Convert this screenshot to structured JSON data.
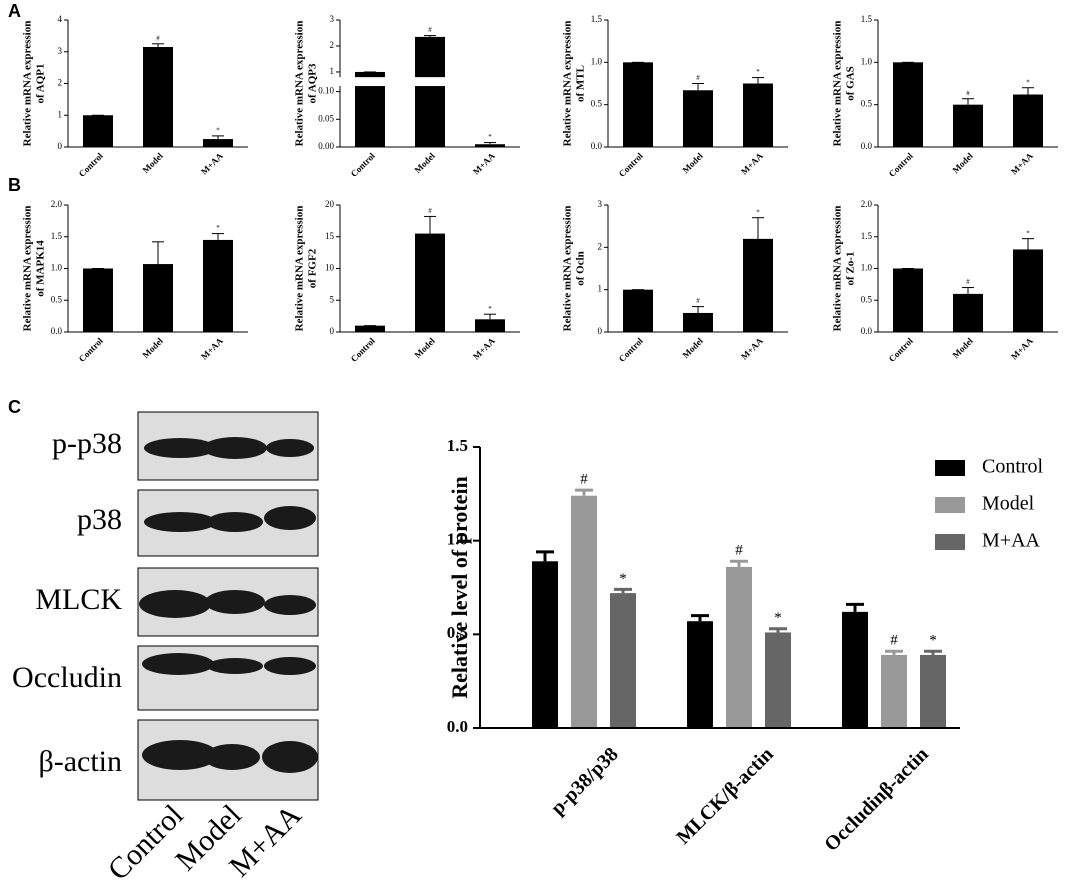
{
  "panels": [
    "A",
    "B",
    "C"
  ],
  "blot": {
    "rows": [
      "p-p38",
      "p38",
      "MLCK",
      "Occludin",
      "β-actin"
    ],
    "lanes": [
      "Control",
      "Model",
      "M+AA"
    ]
  },
  "chart_data": [
    {
      "type": "bar",
      "ylabel": [
        "Relative mRNA expression",
        "of AQP1"
      ],
      "categories": [
        "Control",
        "Model",
        "M+AA"
      ],
      "values": [
        1,
        3.15,
        0.25
      ],
      "errors": [
        0,
        0.1,
        0.1
      ],
      "markers": [
        null,
        "#",
        "*"
      ],
      "ylim": [
        0,
        4
      ],
      "yticks": [
        0,
        1,
        2,
        3,
        4
      ],
      "color": "#000000"
    },
    {
      "type": "bar",
      "ylabel": [
        "Relative mRNA expression",
        "of AQP3"
      ],
      "categories": [
        "Control",
        "Model",
        "M+AA"
      ],
      "values": [
        1,
        2.35,
        0.005
      ],
      "errors": [
        0,
        0.05,
        0.003
      ],
      "markers": [
        null,
        "#",
        "*"
      ],
      "ylim": [
        0,
        3
      ],
      "ybreak": [
        0.11,
        0.8
      ],
      "yticks": [
        {
          "value": 0,
          "label": "0.00"
        },
        {
          "value": 0.05,
          "label": "0.05"
        },
        {
          "value": 0.1,
          "label": "0.10"
        },
        1,
        2,
        3
      ],
      "color": "#000000"
    },
    {
      "type": "bar",
      "ylabel": [
        "Relative mRNA expression",
        "of MTL"
      ],
      "categories": [
        "Control",
        "Model",
        "M+AA"
      ],
      "values": [
        1,
        0.67,
        0.75
      ],
      "errors": [
        0,
        0.08,
        0.07
      ],
      "markers": [
        null,
        "#",
        "*"
      ],
      "ylim": [
        0,
        1.5
      ],
      "yticks": [
        {
          "value": 0,
          "label": "0.0"
        },
        {
          "value": 0.5,
          "label": "0.5"
        },
        {
          "value": 1,
          "label": "1.0"
        },
        {
          "value": 1.5,
          "label": "1.5"
        }
      ],
      "color": "#000000"
    },
    {
      "type": "bar",
      "ylabel": [
        "Relative mRNA expression",
        "of GAS"
      ],
      "categories": [
        "Control",
        "Model",
        "M+AA"
      ],
      "values": [
        1,
        0.5,
        0.62
      ],
      "errors": [
        0,
        0.07,
        0.08
      ],
      "markers": [
        null,
        "#",
        "*"
      ],
      "ylim": [
        0,
        1.5
      ],
      "yticks": [
        {
          "value": 0,
          "label": "0.0"
        },
        {
          "value": 0.5,
          "label": "0.5"
        },
        {
          "value": 1,
          "label": "1.0"
        },
        {
          "value": 1.5,
          "label": "1.5"
        }
      ],
      "color": "#000000"
    },
    {
      "type": "bar",
      "ylabel": [
        "Relative mRNA expression",
        "of MAPK14"
      ],
      "categories": [
        "Control",
        "Model",
        "M+AA"
      ],
      "values": [
        1,
        1.07,
        1.45
      ],
      "errors": [
        0,
        0.35,
        0.1
      ],
      "markers": [
        null,
        null,
        "*"
      ],
      "ylim": [
        0,
        2
      ],
      "yticks": [
        {
          "value": 0,
          "label": "0.0"
        },
        {
          "value": 0.5,
          "label": "0.5"
        },
        {
          "value": 1,
          "label": "1.0"
        },
        {
          "value": 1.5,
          "label": "1.5"
        },
        {
          "value": 2,
          "label": "2.0"
        }
      ],
      "color": "#000000"
    },
    {
      "type": "bar",
      "ylabel": [
        "Relative mRNA expression",
        "of FGF2"
      ],
      "categories": [
        "Control",
        "Model",
        "M+AA"
      ],
      "values": [
        1,
        15.5,
        2
      ],
      "errors": [
        0,
        2.7,
        0.8
      ],
      "markers": [
        null,
        "#",
        "*"
      ],
      "ylim": [
        0,
        20
      ],
      "yticks": [
        0,
        5,
        10,
        15,
        20
      ],
      "color": "#000000"
    },
    {
      "type": "bar",
      "ylabel": [
        "Relative mRNA expression",
        "of Ocln"
      ],
      "categories": [
        "Control",
        "Model",
        "M+AA"
      ],
      "values": [
        1,
        0.45,
        2.2
      ],
      "errors": [
        0,
        0.15,
        0.5
      ],
      "markers": [
        null,
        "#",
        "*"
      ],
      "ylim": [
        0,
        3
      ],
      "yticks": [
        0,
        1,
        2,
        3
      ],
      "color": "#000000"
    },
    {
      "type": "bar",
      "ylabel": [
        "Relative mRNA expression",
        "of Zo-1"
      ],
      "categories": [
        "Control",
        "Model",
        "M+AA"
      ],
      "values": [
        1,
        0.6,
        1.3
      ],
      "errors": [
        0,
        0.1,
        0.17
      ],
      "markers": [
        null,
        "#",
        "*"
      ],
      "ylim": [
        0,
        2
      ],
      "yticks": [
        {
          "value": 0,
          "label": "0.0"
        },
        {
          "value": 0.5,
          "label": "0.5"
        },
        {
          "value": 1,
          "label": "1.0"
        },
        {
          "value": 1.5,
          "label": "1.5"
        },
        {
          "value": 2,
          "label": "2.0"
        }
      ],
      "color": "#000000"
    },
    {
      "type": "grouped_bar",
      "ylabel": "Relative level of protein",
      "categories": [
        "p-p38/p38",
        "MLCK/β-actin",
        "Occludinβ-actin"
      ],
      "series": [
        {
          "name": "Control",
          "color": "#000000",
          "values": [
            0.89,
            0.57,
            0.62
          ],
          "errors": [
            0.05,
            0.03,
            0.04
          ],
          "marker": null
        },
        {
          "name": "Model",
          "color": "#999999",
          "values": [
            1.24,
            0.86,
            0.39
          ],
          "errors": [
            0.03,
            0.03,
            0.02
          ],
          "marker": "#"
        },
        {
          "name": "M+AA",
          "color": "#666666",
          "values": [
            0.72,
            0.51,
            0.39
          ],
          "errors": [
            0.02,
            0.02,
            0.02
          ],
          "marker": "*"
        }
      ],
      "ylim": [
        0,
        1.5
      ],
      "yticks": [
        {
          "value": 0,
          "label": "0.0"
        },
        {
          "value": 0.5,
          "label": "0.5"
        },
        {
          "value": 1,
          "label": "1.0"
        },
        {
          "value": 1.5,
          "label": "1.5"
        }
      ],
      "legend": "top-right"
    }
  ]
}
